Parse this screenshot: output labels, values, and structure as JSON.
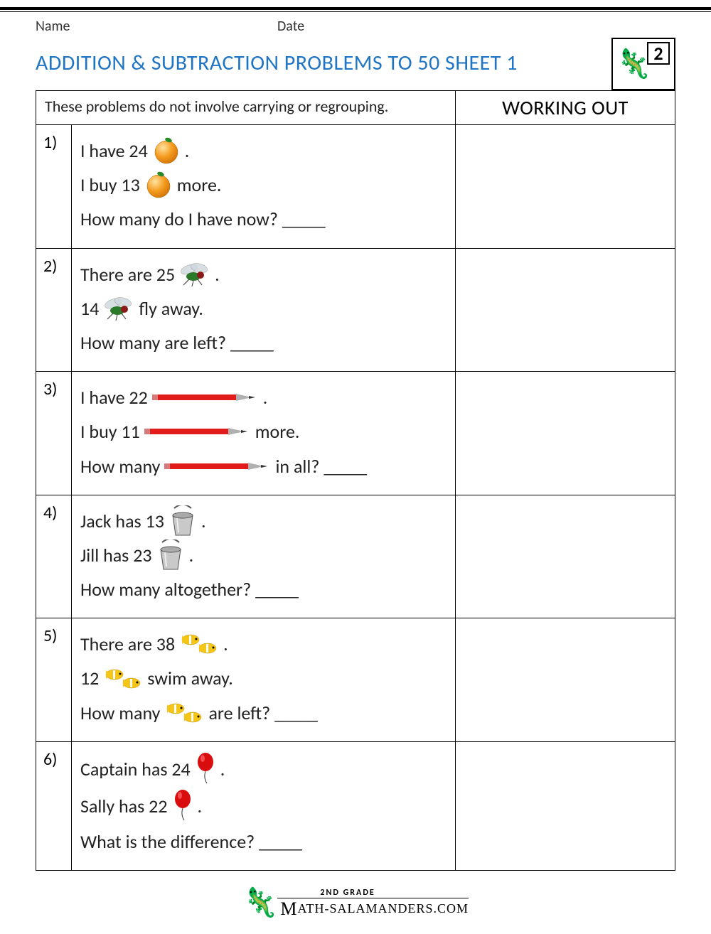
{
  "header": {
    "name_label": "Name",
    "date_label": "Date"
  },
  "title": "ADDITION & SUBTRACTION PROBLEMS TO 50 SHEET 1",
  "logo_grade": "2",
  "instructions": "These problems do not involve carrying or regrouping.",
  "working_header": "WORKING OUT",
  "blank": "_____",
  "colors": {
    "title": "#1f75c4",
    "text": "#222222",
    "border": "#000000",
    "orange_fill": "#f49b1e",
    "orange_highlight": "#ffe3a0",
    "orange_leaf": "#2a8a2a",
    "pencil_body": "#e21b1b",
    "pencil_tip": "#b0b0b0",
    "bucket_fill": "#c9c9c9",
    "bucket_handle": "#555555",
    "fish_body": "#f5c518",
    "fish_stripe": "#ffffff",
    "balloon_fill": "#d90d0d",
    "fly_body": "#2a7a2a",
    "fly_wing": "#cfd8dc"
  },
  "problems": [
    {
      "num": "1)",
      "icon": "orange",
      "lines": [
        [
          "I have 24 ",
          "{icon}",
          "."
        ],
        [
          "I buy 13 ",
          "{icon}",
          " more."
        ],
        [
          "How many do I have now? ",
          "{blank}"
        ]
      ]
    },
    {
      "num": "2)",
      "icon": "fly",
      "lines": [
        [
          "There are 25 ",
          "{icon}",
          "."
        ],
        [
          "14 ",
          "{icon}",
          " fly away."
        ],
        [
          "How many are left? ",
          "{blank}"
        ]
      ]
    },
    {
      "num": "3)",
      "icon": "pencil",
      "lines": [
        [
          "I have 22 ",
          "{icon}",
          "."
        ],
        [
          "I buy 11 ",
          "{icon}",
          " more."
        ],
        [
          "How many ",
          "{icon}",
          " in all? ",
          "{blank}"
        ]
      ]
    },
    {
      "num": "4)",
      "icon": "bucket",
      "lines": [
        [
          "Jack has 13 ",
          "{icon}",
          "."
        ],
        [
          "Jill has 23 ",
          "{icon}",
          "."
        ],
        [
          "How many altogether? ",
          "{blank}"
        ]
      ]
    },
    {
      "num": "5)",
      "icon": "fish",
      "lines": [
        [
          "There are 38 ",
          "{icon}",
          "."
        ],
        [
          "12 ",
          "{icon}",
          " swim away."
        ],
        [
          "How many ",
          "{icon}",
          " are left? ",
          "{blank}"
        ]
      ]
    },
    {
      "num": "6)",
      "icon": "balloon",
      "lines": [
        [
          "Captain has 24 ",
          "{icon}",
          "."
        ],
        [
          "Sally has 22 ",
          "{icon}",
          "."
        ],
        [
          "What is the difference? ",
          "{blank}"
        ]
      ]
    }
  ],
  "footer": {
    "top": "2ND GRADE",
    "main": "ATH-SALAMANDERS.COM"
  }
}
